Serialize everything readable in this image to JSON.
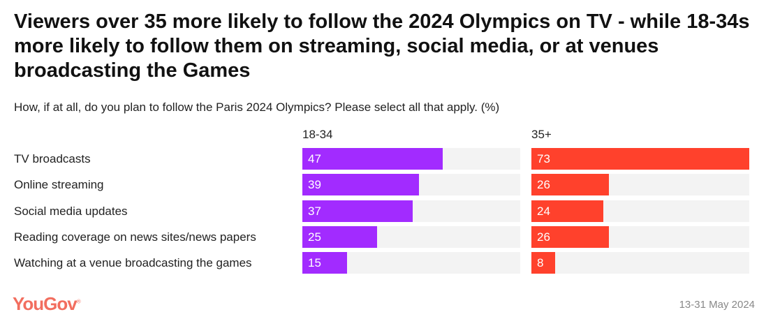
{
  "chart_data": {
    "type": "bar",
    "title": "Viewers over 35 more likely to follow the 2024 Olympics on TV - while 18-34s more likely to follow them on streaming, social media, or at venues broadcasting the Games",
    "subtitle": "How, if at all, do you plan to follow the Paris 2024 Olympics? Please select all that apply. (%)",
    "categories": [
      "TV broadcasts",
      "Online streaming",
      "Social media updates",
      "Reading coverage on news sites/news papers",
      "Watching at a venue broadcasting the games"
    ],
    "series": [
      {
        "name": "18-34",
        "values": [
          47,
          39,
          37,
          25,
          15
        ],
        "color": "#a22bff"
      },
      {
        "name": "35+",
        "values": [
          73,
          26,
          24,
          26,
          8
        ],
        "color": "#ff412c"
      }
    ],
    "xlim": [
      0,
      73
    ],
    "grid": false,
    "track_color": "#f3f3f3"
  },
  "footer": {
    "brand": "YouGov",
    "brand_color": "#f26e5f",
    "date": "13-31 May 2024"
  }
}
